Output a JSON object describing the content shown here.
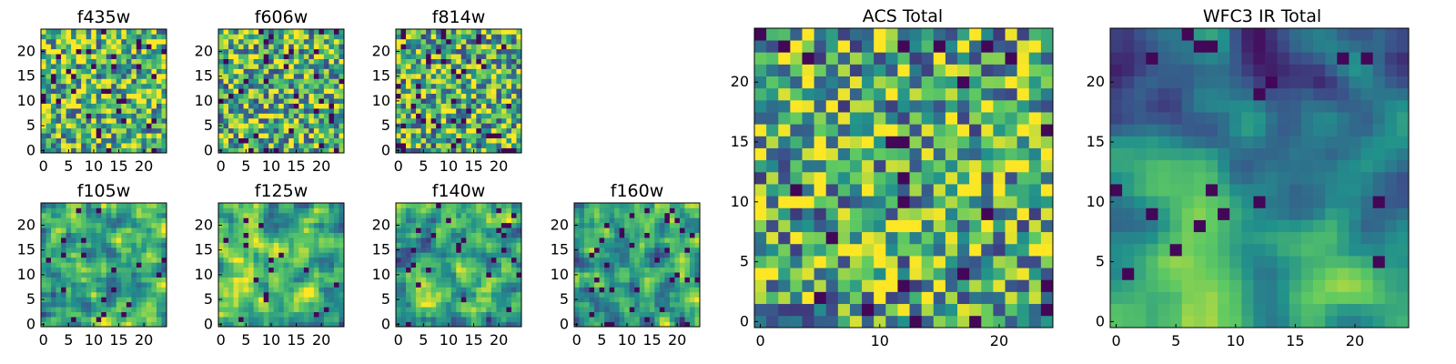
{
  "chart_data": [
    {
      "type": "heatmap",
      "title": "f435w",
      "size": 25,
      "xticks": [
        "0",
        "5",
        "10",
        "15",
        "20"
      ],
      "yticks": [
        "0",
        "5",
        "10",
        "15",
        "20"
      ],
      "xlim": [
        -0.5,
        24.5
      ],
      "ylim": [
        -0.5,
        24.5
      ],
      "texture": {
        "seed": 11,
        "smooth": 0,
        "bias": 0.68,
        "dark": 0.05
      }
    },
    {
      "type": "heatmap",
      "title": "f606w",
      "size": 25,
      "xticks": [
        "0",
        "5",
        "10",
        "15",
        "20"
      ],
      "yticks": [
        "0",
        "5",
        "10",
        "15",
        "20"
      ],
      "xlim": [
        -0.5,
        24.5
      ],
      "ylim": [
        -0.5,
        24.5
      ],
      "texture": {
        "seed": 23,
        "smooth": 0,
        "bias": 0.66,
        "dark": 0.05
      }
    },
    {
      "type": "heatmap",
      "title": "f814w",
      "size": 25,
      "xticks": [
        "0",
        "5",
        "10",
        "15",
        "20"
      ],
      "yticks": [
        "0",
        "5",
        "10",
        "15",
        "20"
      ],
      "xlim": [
        -0.5,
        24.5
      ],
      "ylim": [
        -0.5,
        24.5
      ],
      "texture": {
        "seed": 37,
        "smooth": 0,
        "bias": 0.64,
        "dark": 0.05
      }
    },
    {
      "type": "heatmap",
      "title": "f105w",
      "size": 25,
      "xticks": [
        "0",
        "5",
        "10",
        "15",
        "20"
      ],
      "yticks": [
        "0",
        "5",
        "10",
        "15",
        "20"
      ],
      "xlim": [
        -0.5,
        24.5
      ],
      "ylim": [
        -0.5,
        24.5
      ],
      "texture": {
        "seed": 41,
        "smooth": 1,
        "bias": 0.66,
        "dark": 0.03
      }
    },
    {
      "type": "heatmap",
      "title": "f125w",
      "size": 25,
      "xticks": [
        "0",
        "5",
        "10",
        "15",
        "20"
      ],
      "yticks": [
        "0",
        "5",
        "10",
        "15",
        "20"
      ],
      "xlim": [
        -0.5,
        24.5
      ],
      "ylim": [
        -0.5,
        24.5
      ],
      "texture": {
        "seed": 53,
        "smooth": 1,
        "bias": 0.64,
        "dark": 0.03
      }
    },
    {
      "type": "heatmap",
      "title": "f140w",
      "size": 25,
      "xticks": [
        "0",
        "5",
        "10",
        "15",
        "20"
      ],
      "yticks": [
        "0",
        "5",
        "10",
        "15",
        "20"
      ],
      "xlim": [
        -0.5,
        24.5
      ],
      "ylim": [
        -0.5,
        24.5
      ],
      "texture": {
        "seed": 67,
        "smooth": 1,
        "bias": 0.58,
        "dark": 0.04
      }
    },
    {
      "type": "heatmap",
      "title": "f160w",
      "size": 25,
      "xticks": [
        "0",
        "5",
        "10",
        "15",
        "20"
      ],
      "yticks": [
        "0",
        "5",
        "10",
        "15",
        "20"
      ],
      "xlim": [
        -0.5,
        24.5
      ],
      "ylim": [
        -0.5,
        24.5
      ],
      "texture": {
        "seed": 79,
        "smooth": 1,
        "bias": 0.55,
        "dark": 0.05
      }
    },
    {
      "type": "heatmap",
      "title": "ACS Total",
      "size": 25,
      "xticks": [
        "0",
        "10",
        "20"
      ],
      "yticks": [
        "0",
        "5",
        "10",
        "15",
        "20"
      ],
      "xlim": [
        -0.5,
        24.5
      ],
      "ylim": [
        -0.5,
        24.5
      ],
      "texture": {
        "seed": 97,
        "smooth": 0,
        "bias": 0.62,
        "dark": 0.025
      }
    },
    {
      "type": "heatmap",
      "title": "WFC3 IR Total",
      "size": 25,
      "xticks": [
        "0",
        "5",
        "10",
        "15",
        "20"
      ],
      "yticks": [
        "0",
        "5",
        "10",
        "15",
        "20"
      ],
      "xlim": [
        -0.5,
        24.5
      ],
      "ylim": [
        -0.5,
        24.5
      ],
      "texture": {
        "seed": 101,
        "smooth": 2,
        "bias": 0.5,
        "dark": 0.03,
        "gradient": true
      }
    }
  ],
  "colormap": [
    "#440154",
    "#3b528b",
    "#21918c",
    "#5ec962",
    "#fde725"
  ]
}
